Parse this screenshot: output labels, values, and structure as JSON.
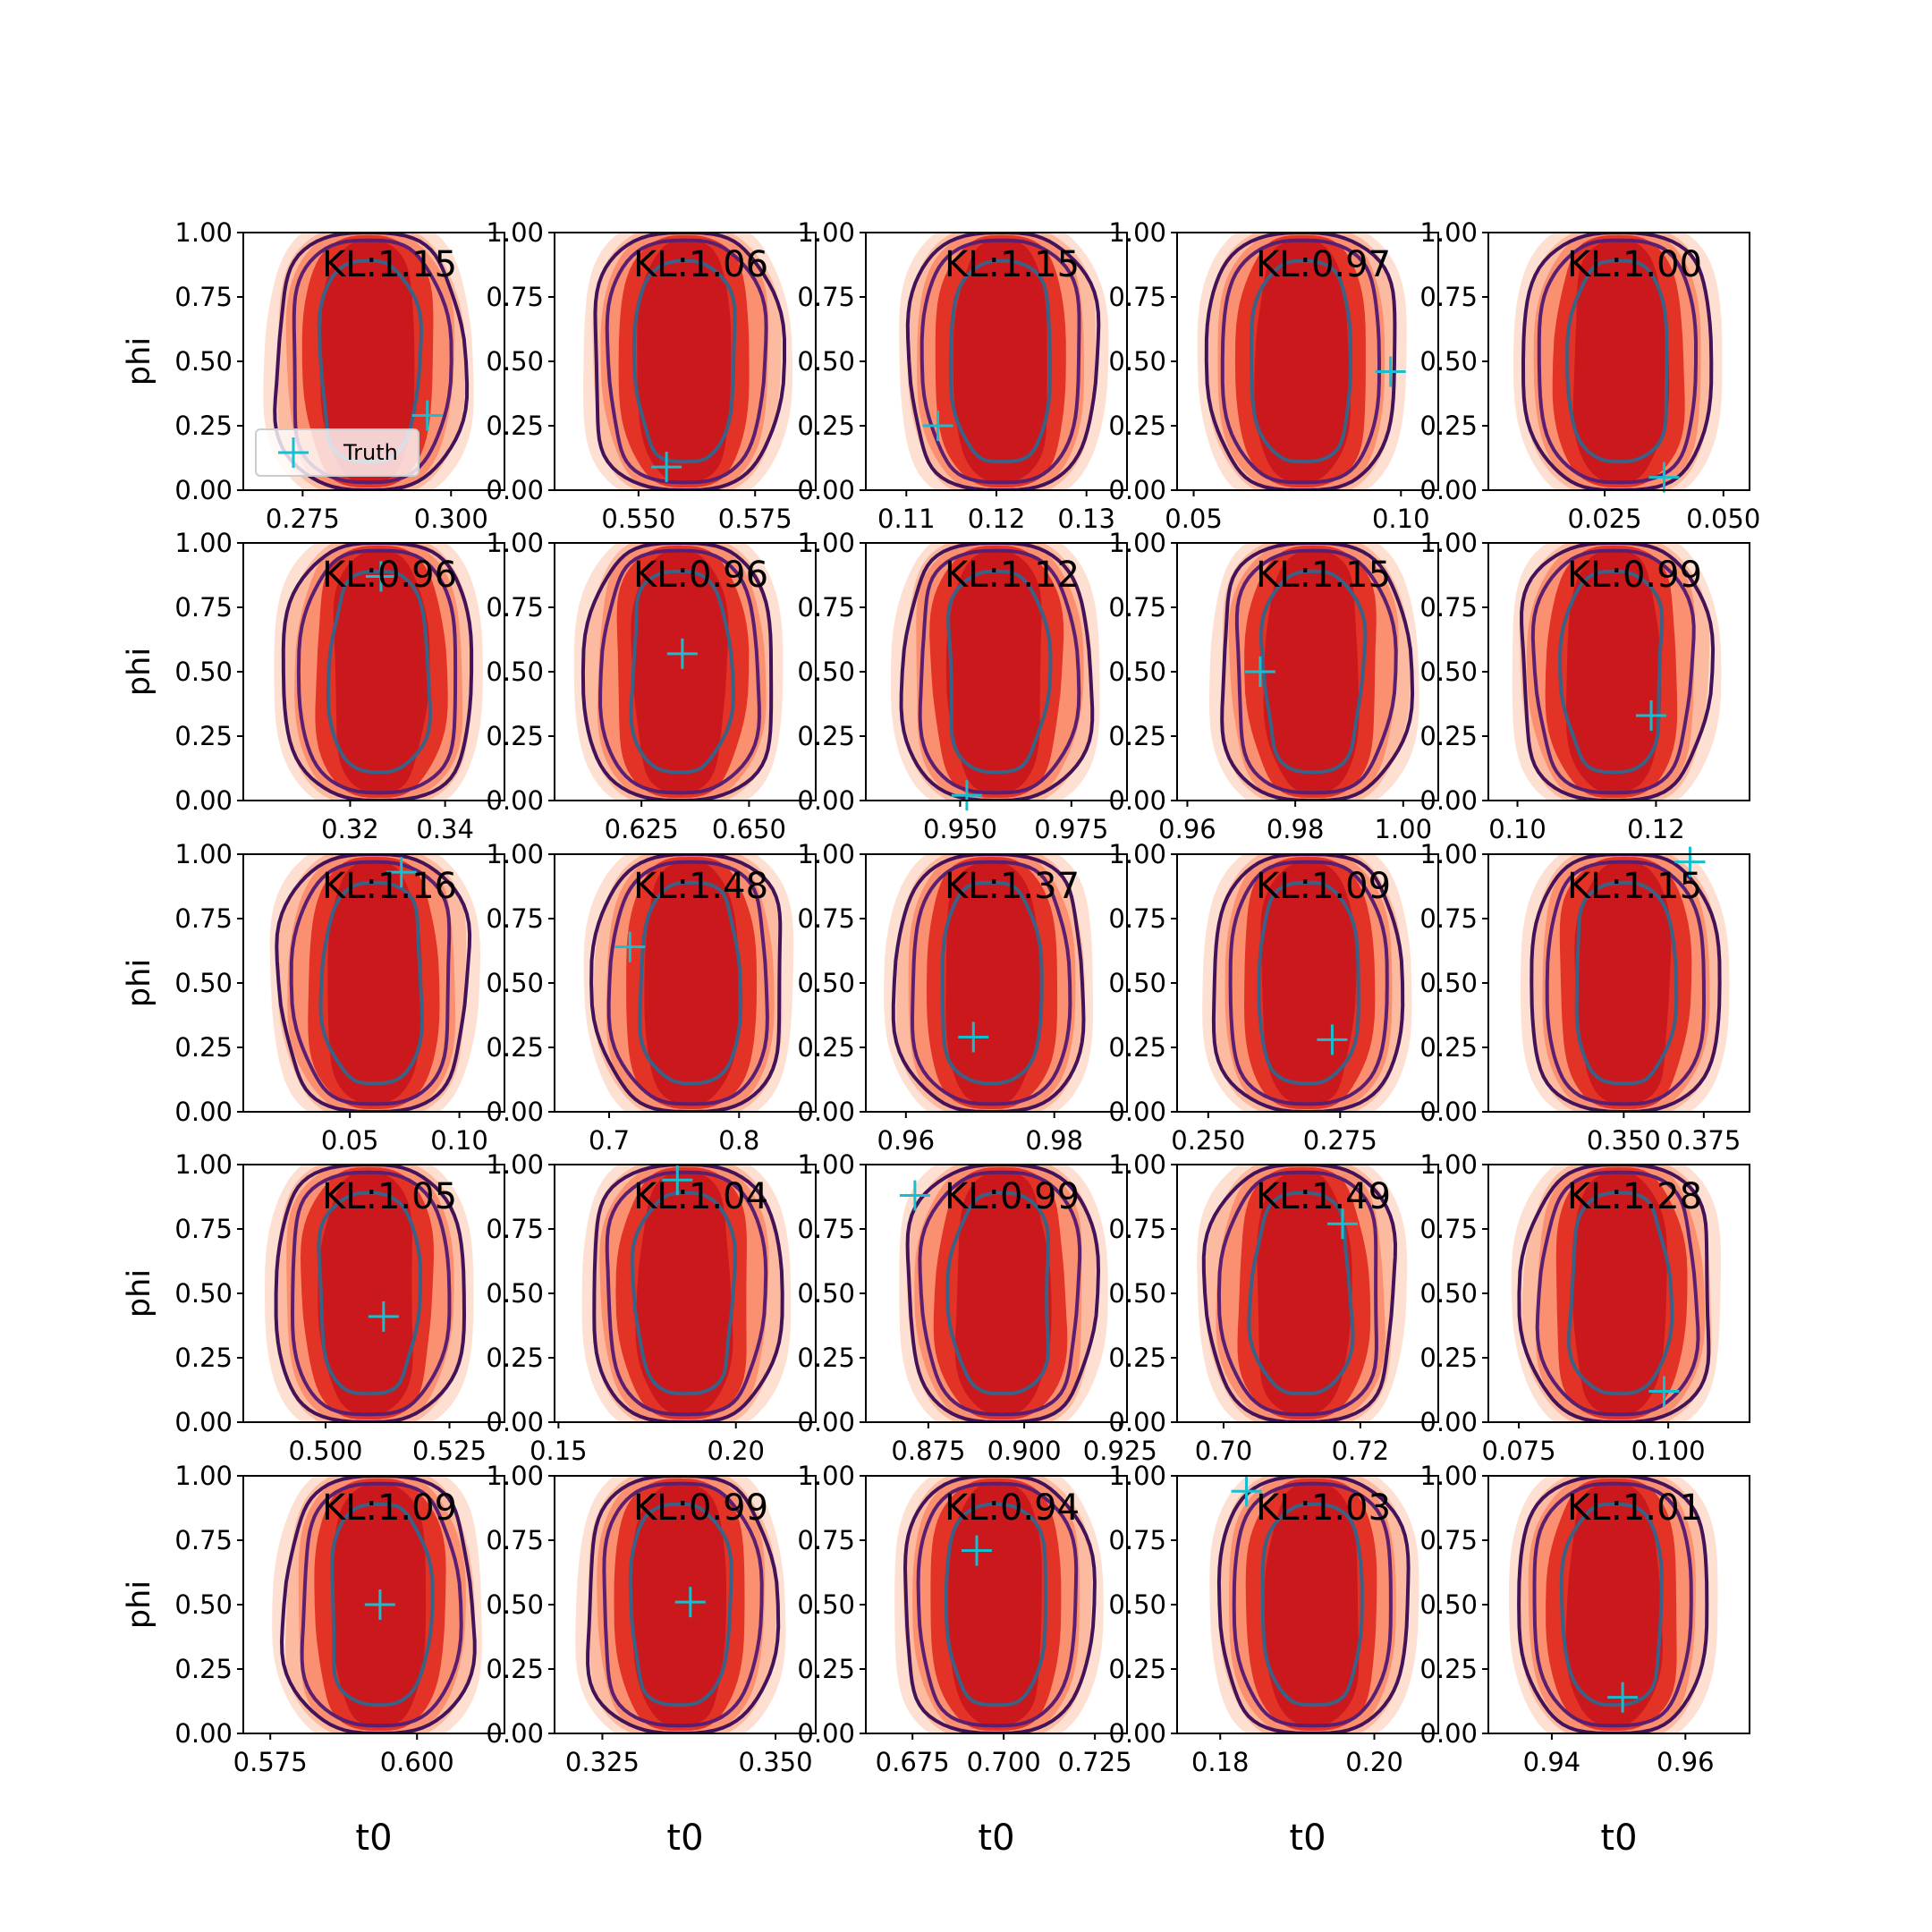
{
  "figure": {
    "legend_label": "Truth"
  },
  "colors": {
    "fill_outer": "#fee0d2",
    "fill_mid": "#fcbba1",
    "fill_mid2": "#fb9070",
    "fill_inner": "#e33226",
    "fill_core": "#cb181d",
    "contour_outer": "#43135a",
    "contour_mid": "#5b1f72",
    "contour_inner": "#3a6186",
    "truth_marker": "#17becf"
  },
  "chart_data": [
    {
      "type": "scatter",
      "title": "",
      "kl_label": "KL:1.15",
      "xlabel": "",
      "ylabel": "phi",
      "xlim": [
        0.265,
        0.309
      ],
      "ylim": [
        0,
        1
      ],
      "xticks": [
        "0.275",
        "0.300"
      ],
      "yticks": [
        "0.00",
        "0.25",
        "0.50",
        "0.75",
        "1.00"
      ],
      "truth": {
        "x": 0.296,
        "y": 0.29
      },
      "legend": true
    },
    {
      "type": "scatter",
      "title": "",
      "kl_label": "KL:1.06",
      "xlabel": "",
      "ylabel": "",
      "xlim": [
        0.532,
        0.588
      ],
      "ylim": [
        0,
        1
      ],
      "xticks": [
        "0.550",
        "0.575"
      ],
      "yticks": [
        "0.00",
        "0.25",
        "0.50",
        "0.75",
        "1.00"
      ],
      "truth": {
        "x": 0.556,
        "y": 0.09
      }
    },
    {
      "type": "scatter",
      "title": "",
      "kl_label": "KL:1.15",
      "xlabel": "",
      "ylabel": "",
      "xlim": [
        0.1055,
        0.1345
      ],
      "ylim": [
        0,
        1
      ],
      "xticks": [
        "0.11",
        "0.12",
        "0.13"
      ],
      "yticks": [
        "0.00",
        "0.25",
        "0.50",
        "0.75",
        "1.00"
      ],
      "truth": {
        "x": 0.1135,
        "y": 0.25
      }
    },
    {
      "type": "scatter",
      "title": "",
      "kl_label": "KL:0.97",
      "xlabel": "",
      "ylabel": "",
      "xlim": [
        0.046,
        0.109
      ],
      "ylim": [
        0,
        1
      ],
      "xticks": [
        "0.05",
        "0.10"
      ],
      "yticks": [
        "0.00",
        "0.25",
        "0.50",
        "0.75",
        "1.00"
      ],
      "truth": {
        "x": 0.0975,
        "y": 0.46
      }
    },
    {
      "type": "scatter",
      "title": "",
      "kl_label": "KL:1.00",
      "xlabel": "",
      "ylabel": "",
      "xlim": [
        0.0005,
        0.0555
      ],
      "ylim": [
        0,
        1
      ],
      "xticks": [
        "0.025",
        "0.050"
      ],
      "yticks": [
        "0.00",
        "0.25",
        "0.50",
        "0.75",
        "1.00"
      ],
      "truth": {
        "x": 0.0375,
        "y": 0.05
      }
    },
    {
      "type": "scatter",
      "title": "",
      "kl_label": "KL:0.96",
      "xlabel": "",
      "ylabel": "phi",
      "xlim": [
        0.2975,
        0.3525
      ],
      "ylim": [
        0,
        1
      ],
      "xticks": [
        "0.32",
        "0.34"
      ],
      "yticks": [
        "0.00",
        "0.25",
        "0.50",
        "0.75",
        "1.00"
      ],
      "truth": {
        "x": 0.3265,
        "y": 0.87
      }
    },
    {
      "type": "scatter",
      "title": "",
      "kl_label": "KL:0.96",
      "xlabel": "",
      "ylabel": "",
      "xlim": [
        0.6048,
        0.6655
      ],
      "ylim": [
        0,
        1
      ],
      "xticks": [
        "0.625",
        "0.650"
      ],
      "yticks": [
        "0.00",
        "0.25",
        "0.50",
        "0.75",
        "1.00"
      ],
      "truth": {
        "x": 0.6345,
        "y": 0.57
      }
    },
    {
      "type": "scatter",
      "title": "",
      "kl_label": "KL:1.12",
      "xlabel": "",
      "ylabel": "",
      "xlim": [
        0.9288,
        0.9875
      ],
      "ylim": [
        0,
        1
      ],
      "xticks": [
        "0.950",
        "0.975"
      ],
      "yticks": [
        "0.00",
        "0.25",
        "0.50",
        "0.75",
        "1.00"
      ],
      "truth": {
        "x": 0.9515,
        "y": 0.02
      }
    },
    {
      "type": "scatter",
      "title": "",
      "kl_label": "KL:1.15",
      "xlabel": "",
      "ylabel": "",
      "xlim": [
        0.9581,
        1.0065
      ],
      "ylim": [
        0,
        1
      ],
      "xticks": [
        "0.96",
        "0.98",
        "1.00"
      ],
      "yticks": [
        "0.00",
        "0.25",
        "0.50",
        "0.75",
        "1.00"
      ],
      "truth": {
        "x": 0.9735,
        "y": 0.5
      }
    },
    {
      "type": "scatter",
      "title": "",
      "kl_label": "KL:0.99",
      "xlabel": "",
      "ylabel": "",
      "xlim": [
        0.0958,
        0.1335
      ],
      "ylim": [
        0,
        1
      ],
      "xticks": [
        "0.10",
        "0.12"
      ],
      "yticks": [
        "0.00",
        "0.25",
        "0.50",
        "0.75",
        "1.00"
      ],
      "truth": {
        "x": 0.1193,
        "y": 0.33
      }
    },
    {
      "type": "scatter",
      "title": "",
      "kl_label": "KL:1.16",
      "xlabel": "",
      "ylabel": "phi",
      "xlim": [
        0.0013,
        0.1206
      ],
      "ylim": [
        0,
        1
      ],
      "xticks": [
        "0.05",
        "0.10"
      ],
      "yticks": [
        "0.00",
        "0.25",
        "0.50",
        "0.75",
        "1.00"
      ],
      "truth": {
        "x": 0.0735,
        "y": 0.93
      }
    },
    {
      "type": "scatter",
      "title": "",
      "kl_label": "KL:1.48",
      "xlabel": "",
      "ylabel": "",
      "xlim": [
        0.658,
        0.859
      ],
      "ylim": [
        0,
        1
      ],
      "xticks": [
        "0.7",
        "0.8"
      ],
      "yticks": [
        "0.00",
        "0.25",
        "0.50",
        "0.75",
        "1.00"
      ],
      "truth": {
        "x": 0.716,
        "y": 0.64
      }
    },
    {
      "type": "scatter",
      "title": "",
      "kl_label": "KL:1.37",
      "xlabel": "",
      "ylabel": "",
      "xlim": [
        0.9546,
        0.9898
      ],
      "ylim": [
        0,
        1
      ],
      "xticks": [
        "0.96",
        "0.98"
      ],
      "yticks": [
        "0.00",
        "0.25",
        "0.50",
        "0.75",
        "1.00"
      ],
      "truth": {
        "x": 0.9691,
        "y": 0.29
      }
    },
    {
      "type": "scatter",
      "title": "",
      "kl_label": "KL:1.09",
      "xlabel": "",
      "ylabel": "",
      "xlim": [
        0.2441,
        0.2936
      ],
      "ylim": [
        0,
        1
      ],
      "xticks": [
        "0.250",
        "0.275"
      ],
      "yticks": [
        "0.00",
        "0.25",
        "0.50",
        "0.75",
        "1.00"
      ],
      "truth": {
        "x": 0.2735,
        "y": 0.28
      }
    },
    {
      "type": "scatter",
      "title": "",
      "kl_label": "KL:1.15",
      "xlabel": "",
      "ylabel": "",
      "xlim": [
        0.3077,
        0.3893
      ],
      "ylim": [
        0,
        1
      ],
      "xticks": [
        "0.350",
        "0.375"
      ],
      "yticks": [
        "0.00",
        "0.25",
        "0.50",
        "0.75",
        "1.00"
      ],
      "truth": {
        "x": 0.3707,
        "y": 0.97
      }
    },
    {
      "type": "scatter",
      "title": "",
      "kl_label": "KL:1.05",
      "xlabel": "",
      "ylabel": "phi",
      "xlim": [
        0.4834,
        0.5361
      ],
      "ylim": [
        0,
        1
      ],
      "xticks": [
        "0.500",
        "0.525"
      ],
      "yticks": [
        "0.00",
        "0.25",
        "0.50",
        "0.75",
        "1.00"
      ],
      "truth": {
        "x": 0.5117,
        "y": 0.41
      }
    },
    {
      "type": "scatter",
      "title": "",
      "kl_label": "KL:1.04",
      "xlabel": "",
      "ylabel": "",
      "xlim": [
        0.1489,
        0.2225
      ],
      "ylim": [
        0,
        1
      ],
      "xticks": [
        "0.15",
        "0.20"
      ],
      "yticks": [
        "0.00",
        "0.25",
        "0.50",
        "0.75",
        "1.00"
      ],
      "truth": {
        "x": 0.1835,
        "y": 0.94
      }
    },
    {
      "type": "scatter",
      "title": "",
      "kl_label": "KL:0.99",
      "xlabel": "",
      "ylabel": "",
      "xlim": [
        0.8587,
        0.9268
      ],
      "ylim": [
        0,
        1
      ],
      "xticks": [
        "0.875",
        "0.900",
        "0.925"
      ],
      "yticks": [
        "0.00",
        "0.25",
        "0.50",
        "0.75",
        "1.00"
      ],
      "truth": {
        "x": 0.8715,
        "y": 0.88
      }
    },
    {
      "type": "scatter",
      "title": "",
      "kl_label": "KL:1.49",
      "xlabel": "",
      "ylabel": "",
      "xlim": [
        0.6932,
        0.7314
      ],
      "ylim": [
        0,
        1
      ],
      "xticks": [
        "0.70",
        "0.72"
      ],
      "yticks": [
        "0.00",
        "0.25",
        "0.50",
        "0.75",
        "1.00"
      ],
      "truth": {
        "x": 0.7174,
        "y": 0.77
      }
    },
    {
      "type": "scatter",
      "title": "",
      "kl_label": "KL:1.28",
      "xlabel": "",
      "ylabel": "",
      "xlim": [
        0.0699,
        0.1136
      ],
      "ylim": [
        0,
        1
      ],
      "xticks": [
        "0.075",
        "0.100"
      ],
      "yticks": [
        "0.00",
        "0.25",
        "0.50",
        "0.75",
        "1.00"
      ],
      "truth": {
        "x": 0.0993,
        "y": 0.12
      }
    },
    {
      "type": "scatter",
      "title": "",
      "kl_label": "KL:1.09",
      "xlabel": "",
      "ylabel": "phi",
      "xlim": [
        0.5704,
        0.6149
      ],
      "ylim": [
        0,
        1
      ],
      "xticks": [
        "0.575",
        "0.600"
      ],
      "yticks": [
        "0.00",
        "0.25",
        "0.50",
        "0.75",
        "1.00"
      ],
      "truth": {
        "x": 0.5937,
        "y": 0.5
      }
    },
    {
      "type": "scatter",
      "title": "",
      "kl_label": "KL:0.99",
      "xlabel": "",
      "ylabel": "",
      "xlim": [
        0.3181,
        0.3558
      ],
      "ylim": [
        0,
        1
      ],
      "xticks": [
        "0.325",
        "0.350"
      ],
      "yticks": [
        "0.00",
        "0.25",
        "0.50",
        "0.75",
        "1.00"
      ],
      "truth": {
        "x": 0.3377,
        "y": 0.51
      }
    },
    {
      "type": "scatter",
      "title": "",
      "kl_label": "KL:0.94",
      "xlabel": "",
      "ylabel": "",
      "xlim": [
        0.6622,
        0.7338
      ],
      "ylim": [
        0,
        1
      ],
      "xticks": [
        "0.675",
        "0.700",
        "0.725"
      ],
      "yticks": [
        "0.00",
        "0.25",
        "0.50",
        "0.75",
        "1.00"
      ],
      "truth": {
        "x": 0.6926,
        "y": 0.71
      }
    },
    {
      "type": "scatter",
      "title": "",
      "kl_label": "KL:1.03",
      "xlabel": "",
      "ylabel": "",
      "xlim": [
        0.1744,
        0.2083
      ],
      "ylim": [
        0,
        1
      ],
      "xticks": [
        "0.18",
        "0.20"
      ],
      "yticks": [
        "0.00",
        "0.25",
        "0.50",
        "0.75",
        "1.00"
      ],
      "truth": {
        "x": 0.1834,
        "y": 0.94
      }
    },
    {
      "type": "scatter",
      "title": "",
      "kl_label": "KL:1.01",
      "xlabel": "",
      "ylabel": "",
      "xlim": [
        0.9305,
        0.9696
      ],
      "ylim": [
        0,
        1
      ],
      "xticks": [
        "0.94",
        "0.96"
      ],
      "yticks": [
        "0.00",
        "0.25",
        "0.50",
        "0.75",
        "1.00"
      ],
      "truth": {
        "x": 0.9506,
        "y": 0.14
      }
    }
  ],
  "column_xlabels": [
    "t0",
    "t0",
    "t0",
    "t0",
    "t0"
  ]
}
